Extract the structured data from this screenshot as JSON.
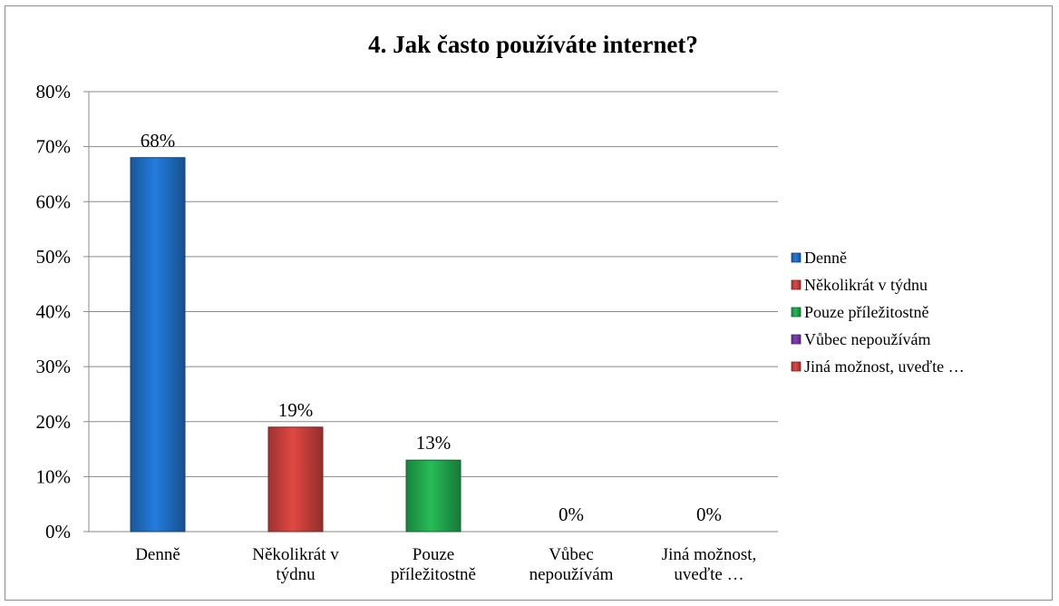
{
  "chart_data": {
    "type": "bar",
    "title": "4. Jak často používáte internet?",
    "categories": [
      [
        "Denně"
      ],
      [
        "Několikrát v",
        "týdnu"
      ],
      [
        "Pouze",
        "příležitostně"
      ],
      [
        "Vůbec",
        "nepoužívám"
      ],
      [
        "Jiná možnost,",
        "uveďte …"
      ]
    ],
    "values": [
      0.68,
      0.19,
      0.13,
      0,
      0
    ],
    "data_labels": [
      "68%",
      "19%",
      "13%",
      "0%",
      "0%"
    ],
    "colors": [
      "#1f6fc5",
      "#c9403c",
      "#21a84e",
      "#7438a6",
      "#c9403c"
    ],
    "ylim": [
      0,
      0.8
    ],
    "yticks": [
      "0%",
      "10%",
      "20%",
      "30%",
      "40%",
      "50%",
      "60%",
      "70%",
      "80%"
    ],
    "grid": true,
    "legend_position": "right",
    "legend": [
      {
        "label": "Denně",
        "color": "#1f6fc5"
      },
      {
        "label": "Několikrát v týdnu",
        "color": "#c9403c"
      },
      {
        "label": "Pouze příležitostně",
        "color": "#21a84e"
      },
      {
        "label": "Vůbec nepoužívám",
        "color": "#7438a6"
      },
      {
        "label": "Jiná možnost, uveďte …",
        "color": "#c9403c"
      }
    ]
  }
}
